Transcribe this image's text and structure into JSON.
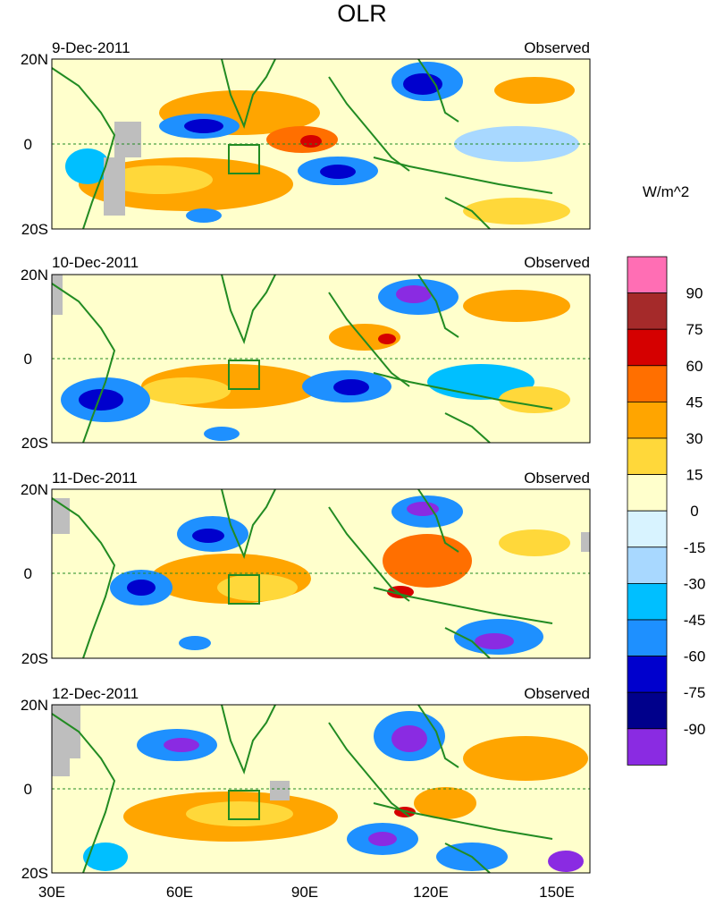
{
  "title": "OLR",
  "units": "W/m^2",
  "panels": [
    {
      "date": "9-Dec-2011",
      "tag": "Observed"
    },
    {
      "date": "10-Dec-2011",
      "tag": "Observed"
    },
    {
      "date": "11-Dec-2011",
      "tag": "Observed"
    },
    {
      "date": "12-Dec-2011",
      "tag": "Observed"
    }
  ],
  "lat_labels": {
    "north": "20N",
    "equator": "0",
    "south": "20S"
  },
  "lon_labels": [
    "30E",
    "60E",
    "90E",
    "120E",
    "150E"
  ],
  "colorbar": {
    "labels": [
      "90",
      "75",
      "60",
      "45",
      "30",
      "15",
      "0",
      "-15",
      "-30",
      "-45",
      "-60",
      "-75",
      "-90"
    ],
    "colors": [
      "#ff6eb4",
      "#a52a2a",
      "#d50000",
      "#ff6f00",
      "#ffa500",
      "#ffd83a",
      "#ffffcc",
      "#d8f3ff",
      "#a8d8ff",
      "#00bfff",
      "#1e90ff",
      "#0000cd",
      "#00008b",
      "#8a2be2"
    ]
  },
  "palette": {
    "land": "#228b22",
    "missing": "#bebebe",
    "neutral": "#ffffcc"
  }
}
